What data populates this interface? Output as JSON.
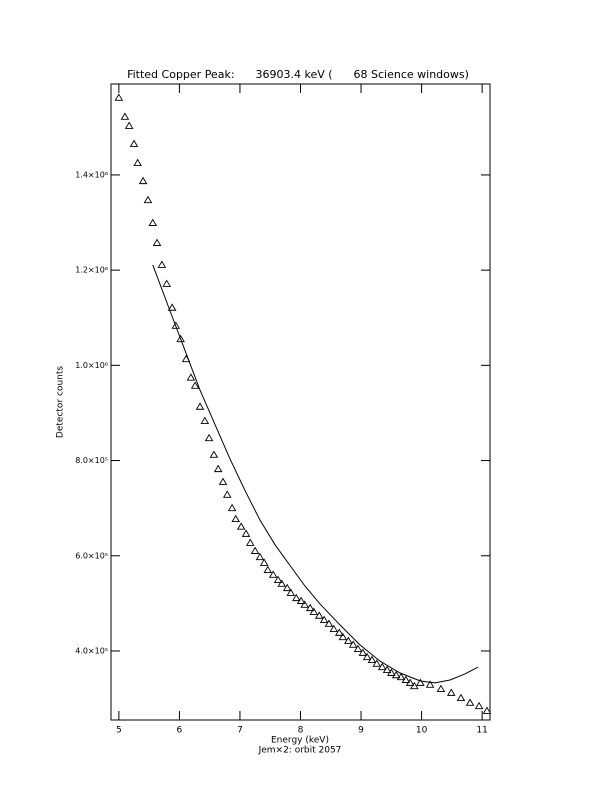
{
  "chart_data": {
    "type": "scatter",
    "title": "Fitted Copper Peak:      36903.4 keV (      68 Science windows)",
    "x_label": "Energy (keV)",
    "subtitle": "Jem×2: orbit 2057",
    "y_label": "Detector counts",
    "xlim": [
      4.87,
      11.13
    ],
    "ylim": [
      255000,
      1591000
    ],
    "xticks": [
      5,
      6,
      7,
      8,
      9,
      10,
      11
    ],
    "yticks": [
      {
        "value": 400000,
        "label": "4.0×10⁵"
      },
      {
        "value": 600000,
        "label": "6.0×10⁵"
      },
      {
        "value": 800000,
        "label": "8.0×10⁵"
      },
      {
        "value": 1000000,
        "label": "1.0×10⁶"
      },
      {
        "value": 1200000,
        "label": "1.2×10⁶"
      },
      {
        "value": 1400000,
        "label": "1.4×10⁶"
      }
    ],
    "series": [
      {
        "mode": "markers",
        "color": "#000000",
        "x": [
          5.0,
          5.1,
          5.17,
          5.25,
          5.31,
          5.4,
          5.48,
          5.56,
          5.63,
          5.71,
          5.79,
          5.88,
          5.94,
          6.02,
          6.11,
          6.19,
          6.26,
          6.34,
          6.42,
          6.49,
          6.57,
          6.64,
          6.72,
          6.79,
          6.87,
          6.93,
          7.02,
          7.1,
          7.17,
          7.25,
          7.33,
          7.4,
          7.46,
          7.55,
          7.63,
          7.69,
          7.78,
          7.84,
          7.93,
          8.01,
          8.07,
          8.16,
          8.22,
          8.31,
          8.39,
          8.47,
          8.55,
          8.64,
          8.7,
          8.79,
          8.87,
          8.95,
          9.03,
          9.1,
          9.18,
          9.26,
          9.35,
          9.43,
          9.5,
          9.58,
          9.66,
          9.74,
          9.81,
          9.88,
          9.98,
          10.14,
          10.32,
          10.49,
          10.65,
          10.8,
          10.95,
          11.08
        ],
        "values": [
          1562000,
          1522000,
          1503000,
          1465000,
          1425000,
          1387000,
          1347000,
          1299000,
          1257000,
          1211000,
          1171000,
          1121000,
          1083000,
          1055000,
          1013000,
          974000,
          957000,
          913000,
          883000,
          847000,
          812000,
          782000,
          755000,
          728000,
          700000,
          677000,
          661000,
          646000,
          627000,
          610000,
          597000,
          585000,
          570000,
          560000,
          549000,
          541000,
          532000,
          522000,
          511000,
          505000,
          497000,
          490000,
          482000,
          474000,
          465000,
          457000,
          446000,
          438000,
          429000,
          421000,
          413000,
          404000,
          396000,
          387000,
          381000,
          373000,
          366000,
          360000,
          354000,
          349000,
          345000,
          339000,
          333000,
          326000,
          333000,
          329000,
          320000,
          312000,
          301000,
          291000,
          284000,
          274000
        ]
      },
      {
        "mode": "line",
        "color": "#000000",
        "x": [
          5.56,
          5.84,
          6.09,
          6.34,
          6.59,
          6.83,
          7.08,
          7.33,
          7.58,
          7.83,
          8.07,
          8.32,
          8.65,
          8.98,
          9.31,
          9.64,
          9.98,
          10.22,
          10.47,
          10.72,
          10.93
        ],
        "values": [
          1211000,
          1116000,
          1032000,
          948000,
          875000,
          805000,
          738000,
          675000,
          623000,
          579000,
          537000,
          499000,
          455000,
          413000,
          379000,
          354000,
          337000,
          333000,
          339000,
          352000,
          366000
        ]
      }
    ]
  }
}
